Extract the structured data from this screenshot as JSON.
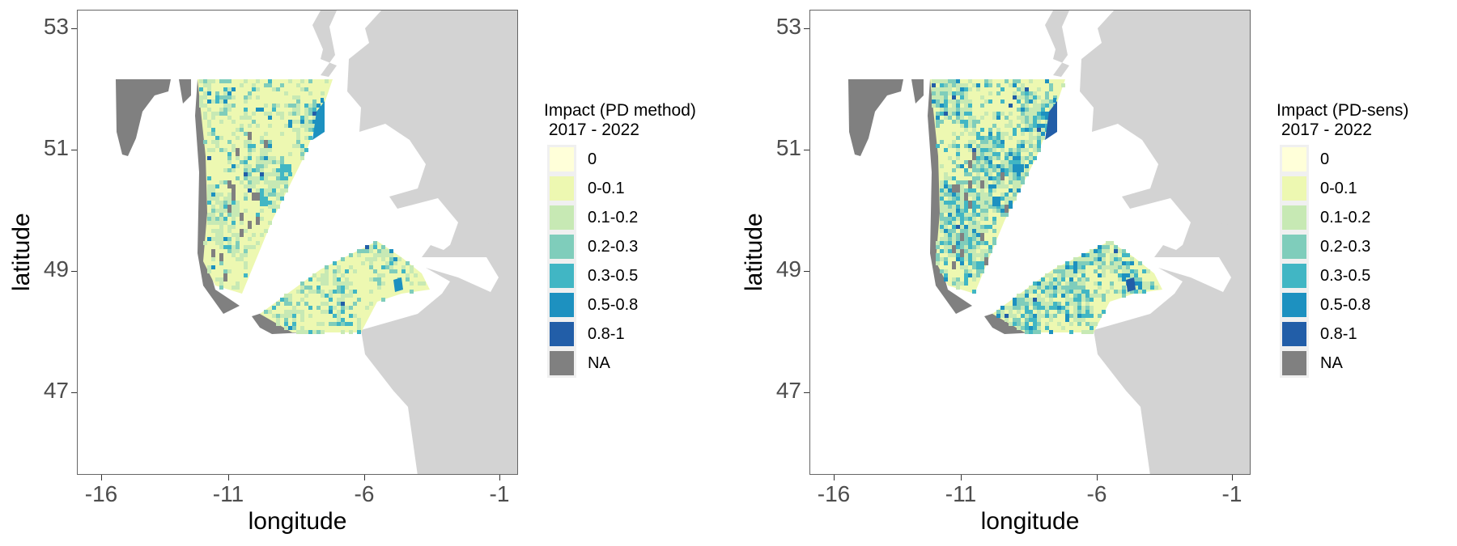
{
  "colors": {
    "land": "#d3d3d3",
    "na": "#808080",
    "c0": "#ffffd9",
    "c01": "#edf8b1",
    "c02": "#c7e9b4",
    "c03": "#7fcdbb",
    "c05": "#41b6c4",
    "c08": "#1d91c0",
    "c1": "#225ea8"
  },
  "panels": [
    {
      "legend_title": "Impact (PD method)\n 2017 - 2022",
      "xlabel": "longitude",
      "ylabel": "latitude",
      "hotspots": "low"
    },
    {
      "legend_title": "Impact (PD-sens)\n 2017 - 2022",
      "xlabel": "longitude",
      "ylabel": "latitude",
      "hotspots": "high"
    }
  ],
  "legend_items": [
    {
      "label": "0",
      "color": "#ffffd9"
    },
    {
      "label": "0-0.1",
      "color": "#edf8b1"
    },
    {
      "label": "0.1-0.2",
      "color": "#c7e9b4"
    },
    {
      "label": "0.2-0.3",
      "color": "#7fcdbb"
    },
    {
      "label": "0.3-0.5",
      "color": "#41b6c4"
    },
    {
      "label": "0.5-0.8",
      "color": "#1d91c0"
    },
    {
      "label": "0.8-1",
      "color": "#225ea8"
    },
    {
      "label": "NA",
      "color": "#808080"
    }
  ],
  "axes": {
    "x_ticks": [
      "-16",
      "-11",
      "-6",
      "-1"
    ],
    "y_ticks": [
      "53",
      "51",
      "49",
      "47"
    ],
    "xlim": [
      -16.8,
      -0.6
    ],
    "ylim": [
      46.6,
      53.3
    ]
  }
}
